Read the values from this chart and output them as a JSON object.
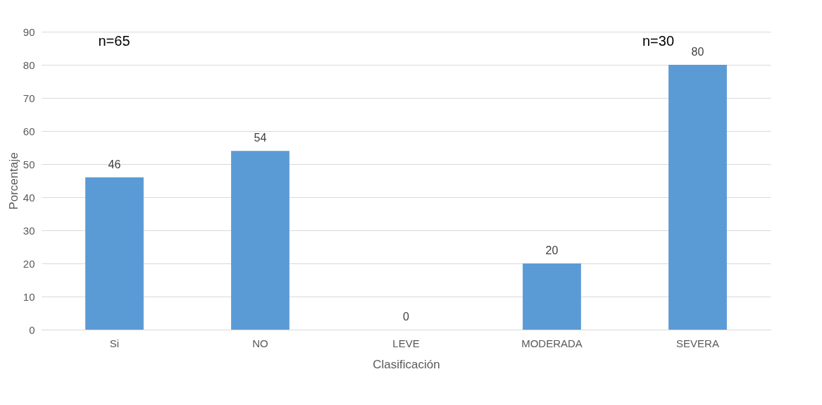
{
  "chart_data": {
    "type": "bar",
    "xlabel": "Clasificación",
    "ylabel": "Porcentaje",
    "categories": [
      "Si",
      "NO",
      "LEVE",
      "MODERADA",
      "SEVERA"
    ],
    "values": [
      46,
      54,
      0,
      20,
      80
    ],
    "color": "#5b9bd5",
    "ylim": [
      0,
      90
    ],
    "yticks": [
      0,
      10,
      20,
      30,
      40,
      50,
      60,
      70,
      80,
      90
    ],
    "grid": "y",
    "data_labels": true,
    "annotations": [
      "n=65",
      "n=30"
    ]
  }
}
